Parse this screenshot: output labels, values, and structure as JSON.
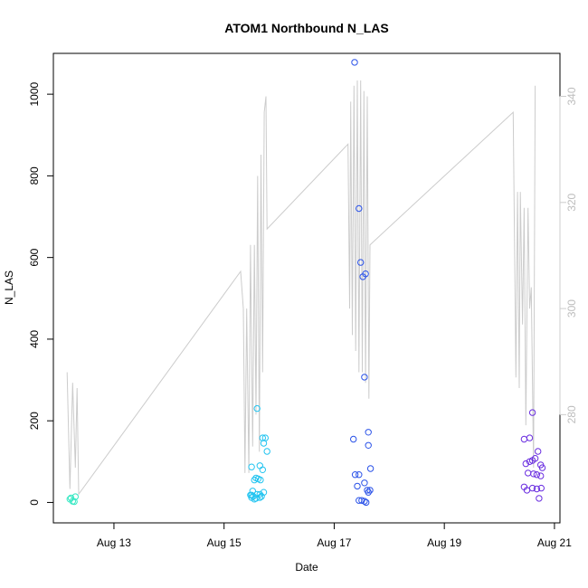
{
  "chart_data": {
    "type": "scatter",
    "title": "ATOM1 Northbound N_LAS",
    "xlabel": "Date",
    "ylabel": "N_LAS",
    "x_ticks": [
      "Aug 13",
      "Aug 15",
      "Aug 17",
      "Aug 19",
      "Aug 21"
    ],
    "x_tick_days": [
      13,
      15,
      17,
      19,
      21
    ],
    "xlim_days": [
      11.9,
      21.1
    ],
    "y_ticks": [
      0,
      200,
      400,
      600,
      800,
      1000
    ],
    "ylim": [
      -50,
      1100
    ],
    "y2_ticks": [
      280,
      300,
      320,
      340
    ],
    "y2lim": [
      259.6,
      348.1
    ],
    "secondary_series_color": "#cccccc",
    "grid": false,
    "legend": "none",
    "series": [
      {
        "color": "#33e8c2",
        "points": [
          [
            12.2,
            8
          ],
          [
            12.25,
            3
          ],
          [
            12.3,
            14
          ],
          [
            12.28,
            2
          ],
          [
            12.22,
            11
          ]
        ]
      },
      {
        "color": "#22c4f0",
        "points": [
          [
            15.5,
            87
          ],
          [
            15.52,
            28
          ],
          [
            15.48,
            18
          ],
          [
            15.55,
            8
          ],
          [
            15.5,
            12
          ],
          [
            15.58,
            60
          ],
          [
            15.62,
            58
          ],
          [
            15.6,
            230
          ],
          [
            15.55,
            55
          ],
          [
            15.65,
            20
          ],
          [
            15.68,
            15
          ],
          [
            15.7,
            158
          ],
          [
            15.72,
            145
          ],
          [
            15.75,
            158
          ],
          [
            15.78,
            125
          ],
          [
            15.65,
            90
          ],
          [
            15.7,
            80
          ],
          [
            15.66,
            55
          ],
          [
            15.72,
            25
          ],
          [
            15.6,
            20
          ],
          [
            15.53,
            15
          ],
          [
            15.58,
            10
          ],
          [
            15.65,
            12
          ],
          [
            15.5,
            18
          ]
        ]
      },
      {
        "color": "#2a52e8",
        "points": [
          [
            17.37,
            1078
          ],
          [
            17.45,
            720
          ],
          [
            17.48,
            588
          ],
          [
            17.52,
            553
          ],
          [
            17.57,
            560
          ],
          [
            17.55,
            307
          ],
          [
            17.35,
            155
          ],
          [
            17.62,
            172
          ],
          [
            17.62,
            140
          ],
          [
            17.66,
            83
          ],
          [
            17.38,
            68
          ],
          [
            17.45,
            68
          ],
          [
            17.42,
            40
          ],
          [
            17.55,
            48
          ],
          [
            17.6,
            30
          ],
          [
            17.62,
            25
          ],
          [
            17.65,
            30
          ],
          [
            17.45,
            5
          ],
          [
            17.5,
            5
          ],
          [
            17.55,
            3
          ],
          [
            17.58,
            0
          ]
        ]
      },
      {
        "color": "#6a2ee0",
        "points": [
          [
            20.45,
            155
          ],
          [
            20.55,
            158
          ],
          [
            20.6,
            220
          ],
          [
            20.48,
            95
          ],
          [
            20.55,
            100
          ],
          [
            20.6,
            103
          ],
          [
            20.65,
            108
          ],
          [
            20.7,
            125
          ],
          [
            20.75,
            92
          ],
          [
            20.78,
            85
          ],
          [
            20.52,
            72
          ],
          [
            20.62,
            70
          ],
          [
            20.68,
            68
          ],
          [
            20.75,
            65
          ],
          [
            20.45,
            38
          ],
          [
            20.5,
            30
          ],
          [
            20.6,
            35
          ],
          [
            20.68,
            33
          ],
          [
            20.72,
            10
          ],
          [
            20.76,
            35
          ]
        ]
      }
    ],
    "secondary_series": {
      "points": [
        [
          12.15,
          288
        ],
        [
          12.2,
          266
        ],
        [
          12.25,
          286
        ],
        [
          12.3,
          270
        ],
        [
          12.33,
          285
        ],
        [
          12.36,
          265
        ],
        [
          15.3,
          307
        ],
        [
          15.35,
          300
        ],
        [
          15.38,
          269
        ],
        [
          15.41,
          300
        ],
        [
          15.45,
          269
        ],
        [
          15.48,
          312
        ],
        [
          15.52,
          274
        ],
        [
          15.55,
          312
        ],
        [
          15.58,
          280
        ],
        [
          15.61,
          325
        ],
        [
          15.64,
          273
        ],
        [
          15.67,
          329
        ],
        [
          15.7,
          288
        ],
        [
          15.73,
          337
        ],
        [
          15.76,
          340
        ],
        [
          15.78,
          315
        ],
        [
          17.25,
          331
        ],
        [
          17.28,
          300
        ],
        [
          17.3,
          339
        ],
        [
          17.33,
          295
        ],
        [
          17.36,
          342
        ],
        [
          17.39,
          292
        ],
        [
          17.42,
          343
        ],
        [
          17.45,
          288
        ],
        [
          17.48,
          343
        ],
        [
          17.51,
          288
        ],
        [
          17.54,
          341
        ],
        [
          17.57,
          286
        ],
        [
          17.6,
          340
        ],
        [
          17.63,
          283
        ],
        [
          17.65,
          312
        ],
        [
          20.25,
          337
        ],
        [
          20.3,
          287
        ],
        [
          20.33,
          322
        ],
        [
          20.36,
          285
        ],
        [
          20.38,
          322
        ],
        [
          20.42,
          297
        ],
        [
          20.45,
          319
        ],
        [
          20.48,
          278
        ],
        [
          20.52,
          319
        ],
        [
          20.55,
          300
        ],
        [
          20.58,
          304
        ],
        [
          20.62,
          270
        ],
        [
          20.65,
          342
        ]
      ]
    }
  }
}
